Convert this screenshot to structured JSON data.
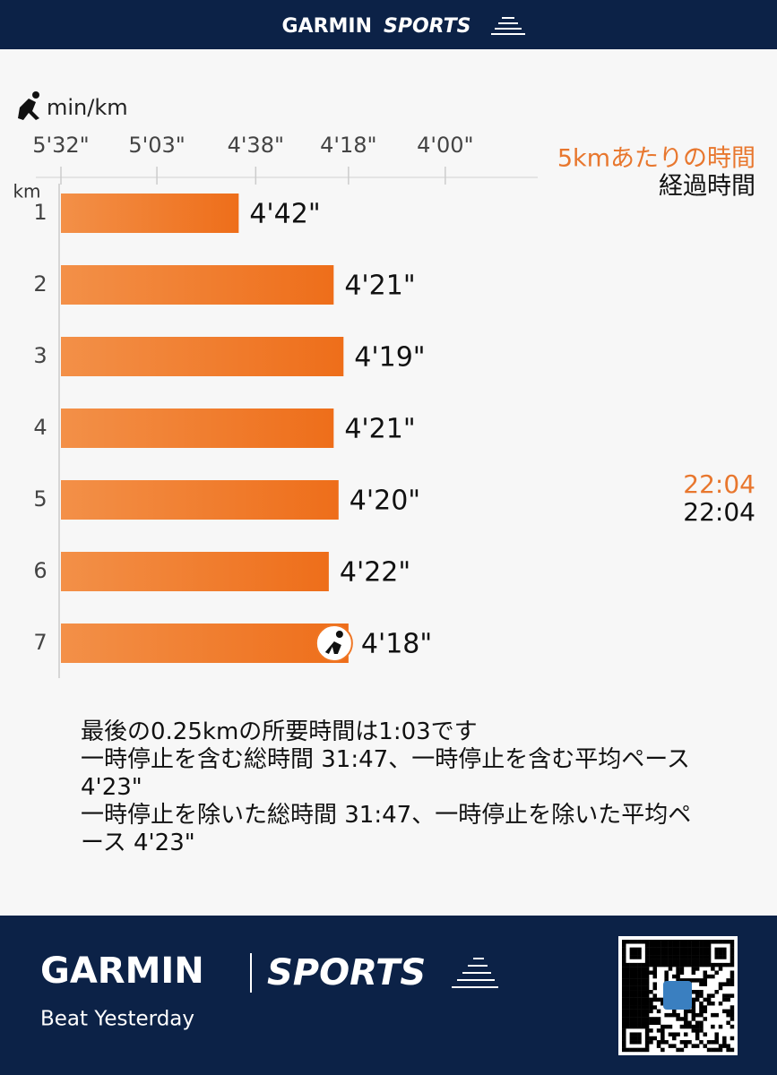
{
  "header": {
    "brand": "GARMIN",
    "sub_brand": "SPORTS"
  },
  "chart_data": {
    "type": "bar",
    "orientation": "horizontal",
    "scale": "reciprocal",
    "x_label": "min/km",
    "y_label": "km",
    "categories": [
      "1",
      "2",
      "3",
      "4",
      "5",
      "6",
      "7"
    ],
    "values": [
      282,
      261,
      259,
      261,
      260,
      262,
      258
    ],
    "value_labels": [
      "4'42\"",
      "4'21\"",
      "4'19\"",
      "4'21\"",
      "4'20\"",
      "4'22\"",
      "4'18\""
    ],
    "color": "#ef7624",
    "xlim": [
      332,
      225
    ],
    "xticks": [
      {
        "value": 332,
        "label": "5'32\""
      },
      {
        "value": 303,
        "label": "5'03\""
      },
      {
        "value": 278,
        "label": "4'38\""
      },
      {
        "value": 258,
        "label": "4'18\""
      },
      {
        "value": 240,
        "label": "4'00\""
      }
    ],
    "legend": [
      {
        "name": "5kmあたりの時間",
        "color": "#e8772e"
      },
      {
        "name": "経過時間",
        "color": "#111111"
      }
    ],
    "split": {
      "category": "5",
      "split_time": "22:04",
      "elapsed_time": "22:04"
    }
  },
  "notes": [
    "最後の0.25kmの所要時間は1:03です",
    "一時停止を含む総時間 31:47、一時停止を含む平均ペース 4'23\"",
    "一時停止を除いた総時間 31:47、一時停止を除いた平均ペース 4'23\""
  ],
  "footer": {
    "brand": "GARMIN",
    "sub_brand": "SPORTS",
    "tagline": "Beat Yesterday"
  }
}
